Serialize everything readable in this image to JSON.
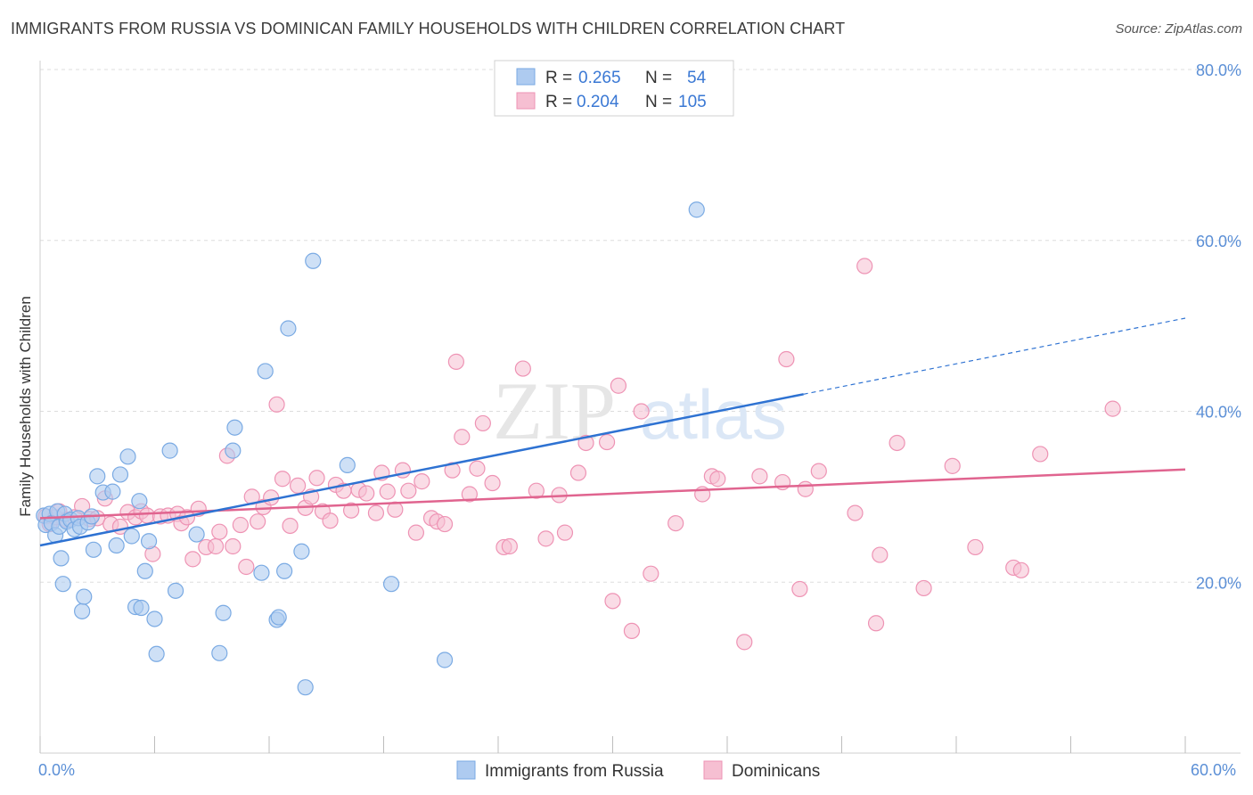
{
  "title": "IMMIGRANTS FROM RUSSIA VS DOMINICAN FAMILY HOUSEHOLDS WITH CHILDREN CORRELATION CHART",
  "source": "Source: ZipAtlas.com",
  "watermark": {
    "zip": "ZIP",
    "atlas": "atlas"
  },
  "colors": {
    "blue_fill": "#aecbf0",
    "blue_stroke": "#7aaae3",
    "blue_line": "#2e72d2",
    "pink_fill": "#f6bfd2",
    "pink_stroke": "#ee93b4",
    "pink_line": "#e0648f",
    "tick_label": "#5b8fd6",
    "grid": "#dddddd"
  },
  "chart_data": {
    "type": "scatter",
    "title": "IMMIGRANTS FROM RUSSIA VS DOMINICAN FAMILY HOUSEHOLDS WITH CHILDREN CORRELATION CHART",
    "xlabel": "",
    "ylabel": "Family Households with Children",
    "xlim": [
      0,
      60
    ],
    "ylim": [
      0,
      80
    ],
    "x_tick_labels": [
      "0.0%",
      "60.0%"
    ],
    "y_ticks": [
      20,
      40,
      60,
      80
    ],
    "y_tick_labels": [
      "20.0%",
      "40.0%",
      "60.0%",
      "80.0%"
    ],
    "grid": true,
    "legend": [
      {
        "r_label": "R =",
        "r_value": "0.265",
        "n_label": "N =",
        "n_value": "54"
      },
      {
        "r_label": "R =",
        "r_value": "0.204",
        "n_label": "N =",
        "n_value": "105"
      }
    ],
    "series": [
      {
        "name": "Immigrants from Russia",
        "color": "#7aaae3",
        "trend": {
          "x0": 0,
          "y0": 24.3,
          "x1": 40,
          "y1": 42.0,
          "dash_to_x": 60,
          "dash_to_y": 50.9
        },
        "points": [
          [
            0.2,
            27.8
          ],
          [
            0.3,
            26.7
          ],
          [
            0.5,
            28.0
          ],
          [
            0.6,
            26.9
          ],
          [
            0.8,
            25.5
          ],
          [
            0.9,
            28.3
          ],
          [
            1.0,
            26.5
          ],
          [
            1.1,
            22.8
          ],
          [
            1.2,
            19.8
          ],
          [
            1.3,
            28.0
          ],
          [
            1.4,
            27.1
          ],
          [
            1.6,
            27.3
          ],
          [
            1.8,
            26.2
          ],
          [
            2.0,
            27.5
          ],
          [
            2.1,
            26.5
          ],
          [
            2.2,
            16.6
          ],
          [
            2.3,
            18.3
          ],
          [
            2.5,
            27.0
          ],
          [
            2.7,
            27.7
          ],
          [
            2.8,
            23.8
          ],
          [
            3.0,
            32.4
          ],
          [
            3.3,
            30.5
          ],
          [
            3.8,
            30.6
          ],
          [
            4.0,
            24.3
          ],
          [
            4.2,
            32.6
          ],
          [
            4.6,
            34.7
          ],
          [
            4.8,
            25.4
          ],
          [
            5.0,
            17.1
          ],
          [
            5.2,
            29.5
          ],
          [
            5.3,
            17.0
          ],
          [
            5.5,
            21.3
          ],
          [
            5.7,
            24.8
          ],
          [
            6.0,
            15.7
          ],
          [
            6.1,
            11.6
          ],
          [
            6.8,
            35.4
          ],
          [
            7.1,
            19.0
          ],
          [
            8.2,
            25.6
          ],
          [
            9.4,
            11.7
          ],
          [
            9.6,
            16.4
          ],
          [
            10.1,
            35.4
          ],
          [
            10.2,
            38.1
          ],
          [
            11.6,
            21.1
          ],
          [
            11.8,
            44.7
          ],
          [
            12.4,
            15.6
          ],
          [
            12.5,
            15.9
          ],
          [
            12.8,
            21.3
          ],
          [
            13.0,
            49.7
          ],
          [
            13.7,
            23.6
          ],
          [
            13.9,
            7.7
          ],
          [
            14.3,
            57.6
          ],
          [
            16.1,
            33.7
          ],
          [
            18.4,
            19.8
          ],
          [
            21.2,
            10.9
          ],
          [
            34.4,
            63.6
          ]
        ]
      },
      {
        "name": "Dominicans",
        "color": "#ee93b4",
        "trend": {
          "x0": 0,
          "y0": 27.5,
          "x1": 60,
          "y1": 33.2
        },
        "points": [
          [
            0.3,
            27.7
          ],
          [
            0.5,
            26.8
          ],
          [
            0.8,
            27.6
          ],
          [
            1.0,
            28.3
          ],
          [
            1.4,
            27.3
          ],
          [
            1.8,
            27.6
          ],
          [
            2.2,
            28.9
          ],
          [
            2.6,
            27.4
          ],
          [
            3.0,
            27.5
          ],
          [
            3.4,
            29.8
          ],
          [
            3.7,
            26.8
          ],
          [
            4.2,
            26.5
          ],
          [
            4.6,
            28.2
          ],
          [
            5.0,
            27.6
          ],
          [
            5.3,
            28.3
          ],
          [
            5.6,
            27.8
          ],
          [
            5.9,
            23.3
          ],
          [
            6.3,
            27.7
          ],
          [
            6.7,
            27.8
          ],
          [
            7.2,
            28.0
          ],
          [
            7.4,
            26.9
          ],
          [
            7.7,
            27.6
          ],
          [
            8.0,
            22.7
          ],
          [
            8.3,
            28.6
          ],
          [
            8.7,
            24.1
          ],
          [
            9.2,
            24.2
          ],
          [
            9.4,
            25.9
          ],
          [
            9.8,
            34.8
          ],
          [
            10.1,
            24.2
          ],
          [
            10.5,
            26.7
          ],
          [
            10.8,
            21.8
          ],
          [
            11.1,
            30.0
          ],
          [
            11.4,
            27.1
          ],
          [
            11.7,
            28.8
          ],
          [
            12.1,
            29.9
          ],
          [
            12.4,
            40.8
          ],
          [
            12.7,
            32.1
          ],
          [
            13.1,
            26.6
          ],
          [
            13.5,
            31.3
          ],
          [
            13.9,
            28.7
          ],
          [
            14.2,
            30.0
          ],
          [
            14.5,
            32.2
          ],
          [
            14.8,
            28.3
          ],
          [
            15.2,
            27.2
          ],
          [
            15.5,
            31.4
          ],
          [
            15.9,
            30.7
          ],
          [
            16.3,
            28.4
          ],
          [
            16.7,
            30.8
          ],
          [
            17.1,
            30.4
          ],
          [
            17.6,
            28.1
          ],
          [
            17.9,
            32.8
          ],
          [
            18.2,
            30.6
          ],
          [
            18.6,
            28.5
          ],
          [
            19.0,
            33.1
          ],
          [
            19.3,
            30.7
          ],
          [
            19.7,
            25.8
          ],
          [
            20.0,
            31.8
          ],
          [
            20.5,
            27.5
          ],
          [
            20.8,
            27.1
          ],
          [
            21.2,
            26.8
          ],
          [
            21.6,
            33.1
          ],
          [
            21.8,
            45.8
          ],
          [
            22.1,
            37.0
          ],
          [
            22.5,
            30.3
          ],
          [
            22.9,
            33.3
          ],
          [
            23.2,
            38.6
          ],
          [
            23.7,
            31.6
          ],
          [
            24.3,
            24.1
          ],
          [
            24.6,
            24.2
          ],
          [
            25.3,
            45.0
          ],
          [
            26.0,
            30.7
          ],
          [
            26.5,
            25.1
          ],
          [
            27.2,
            30.2
          ],
          [
            27.5,
            25.8
          ],
          [
            28.2,
            32.8
          ],
          [
            28.6,
            36.3
          ],
          [
            29.7,
            36.4
          ],
          [
            30.3,
            43.0
          ],
          [
            30.0,
            17.8
          ],
          [
            31.0,
            14.3
          ],
          [
            31.5,
            40.0
          ],
          [
            32.0,
            21.0
          ],
          [
            33.3,
            26.9
          ],
          [
            34.7,
            30.3
          ],
          [
            35.2,
            32.4
          ],
          [
            35.5,
            32.1
          ],
          [
            37.7,
            32.4
          ],
          [
            38.9,
            31.7
          ],
          [
            39.1,
            46.1
          ],
          [
            40.1,
            30.9
          ],
          [
            40.8,
            33.0
          ],
          [
            42.7,
            28.1
          ],
          [
            43.2,
            57.0
          ],
          [
            43.8,
            15.2
          ],
          [
            44.0,
            23.2
          ],
          [
            44.9,
            36.3
          ],
          [
            47.8,
            33.6
          ],
          [
            49.0,
            24.1
          ],
          [
            51.0,
            21.7
          ],
          [
            51.4,
            21.4
          ],
          [
            52.4,
            35.0
          ],
          [
            56.2,
            40.3
          ],
          [
            46.3,
            19.3
          ],
          [
            39.8,
            19.2
          ],
          [
            36.9,
            13.0
          ]
        ]
      }
    ],
    "bottom_legend": [
      "Immigrants from Russia",
      "Dominicans"
    ]
  }
}
